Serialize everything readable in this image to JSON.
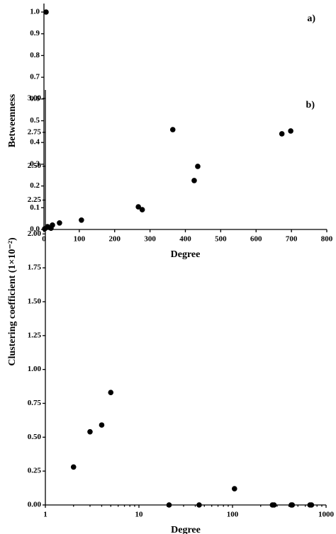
{
  "chart_data": [
    {
      "type": "scatter",
      "annotation": "a)",
      "x_label": "Degree",
      "y_label": "Betweenness",
      "color": "#000000",
      "log_x": false,
      "x": [
        2,
        6,
        10,
        20,
        24,
        44,
        106,
        267,
        278,
        425,
        435,
        673,
        698
      ],
      "values": [
        0.003,
        1.0,
        0.013,
        0.006,
        0.02,
        0.03,
        0.043,
        0.104,
        0.091,
        0.225,
        0.29,
        0.44,
        0.453
      ],
      "xlim": [
        0,
        800
      ],
      "xticks": [
        0,
        100,
        200,
        300,
        400,
        500,
        600,
        700,
        800
      ],
      "ylim": [
        0,
        1.0
      ],
      "yticks": [
        {
          "value": 0,
          "label": "0.0"
        },
        0.1,
        0.2,
        0.3,
        0.4,
        0.5,
        0.6,
        0.7,
        0.8,
        0.9,
        {
          "value": 1,
          "label": "1.0"
        }
      ]
    },
    {
      "type": "scatter",
      "annotation": "b)",
      "x_label": "Degree",
      "y_label": "Clustering coefficient (1×10⁻²)",
      "color": "#000000",
      "log_x": true,
      "x": [
        2,
        3,
        4,
        5,
        21,
        23,
        44,
        105,
        267,
        278,
        425,
        435,
        673,
        698
      ],
      "values": [
        0.28,
        0.54,
        0.59,
        0.83,
        0,
        2.77,
        0,
        0.12,
        0,
        0,
        0,
        0,
        0,
        0
      ],
      "xlim": [
        1,
        1000
      ],
      "xticks": [
        1,
        10,
        100,
        1000
      ],
      "ylim": [
        0,
        3
      ],
      "yticks": [
        {
          "value": 0,
          "label": "0.00"
        },
        0.25,
        {
          "value": 0.5,
          "label": "0.50"
        },
        0.75,
        {
          "value": 1,
          "label": "1.00"
        },
        1.25,
        {
          "value": 1.5,
          "label": "1.50"
        },
        1.75,
        {
          "value": 2,
          "label": "2.00"
        },
        2.25,
        {
          "value": 2.5,
          "label": "2.50"
        },
        2.75,
        {
          "value": 3,
          "label": "3.00"
        }
      ]
    }
  ]
}
